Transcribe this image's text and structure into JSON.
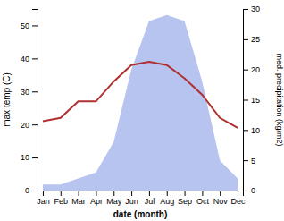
{
  "chart_data": {
    "type": "line",
    "x_label": "date (month)",
    "y_label": "max temp (C)",
    "y2_label": "med. precipitation (kg/m2)",
    "categories": [
      "Jan",
      "Feb",
      "Mar",
      "Apr",
      "May",
      "Jun",
      "Jul",
      "Aug",
      "Sep",
      "Oct",
      "Nov",
      "Dec"
    ],
    "series": [
      {
        "type": "area",
        "axis": "y2",
        "color": "#b8c4f0",
        "values": [
          1,
          1,
          2,
          3,
          8,
          20,
          28,
          29,
          28,
          18,
          5,
          2
        ]
      },
      {
        "type": "line",
        "color": "#b03030",
        "values": [
          21,
          22,
          27,
          27,
          33,
          38,
          39,
          38,
          34,
          29,
          22,
          19
        ]
      }
    ],
    "ylim": [
      0,
      55
    ],
    "yticks": [
      0,
      10,
      20,
      30,
      40,
      50
    ],
    "y2lim": [
      0,
      30
    ],
    "y2ticks": [
      0,
      5,
      10,
      15,
      20,
      25,
      30
    ],
    "grid": false
  }
}
